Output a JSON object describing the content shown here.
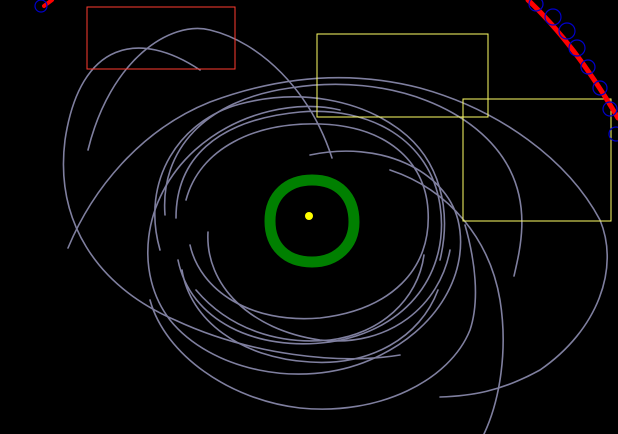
{
  "scene": {
    "background_color": "#000000",
    "star": {
      "label": "",
      "color": "#ffff00"
    },
    "habitable_zone_ring": {
      "color": "#008000"
    },
    "orbit_trail_color": "#7f7f9f",
    "outer_arc": {
      "color": "#ff0000",
      "loops_color": "#0000cc"
    },
    "boxes": [
      {
        "color": "#ff3b30"
      },
      {
        "color": "#ffff66"
      },
      {
        "color": "#ffff66"
      }
    ]
  }
}
